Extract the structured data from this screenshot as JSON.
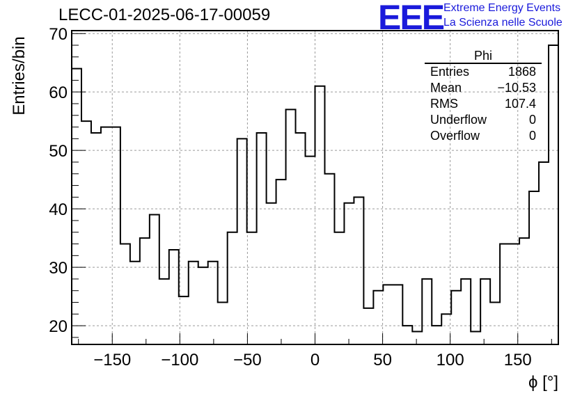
{
  "title": "LECC-01-2025-06-17-00059",
  "logo": {
    "mark": "EEE",
    "line1": "Extreme Energy Events",
    "line2": "La Scienza nelle Scuole"
  },
  "stats_box": {
    "name": "Phi",
    "rows": [
      {
        "label": "Entries",
        "value": "1868"
      },
      {
        "label": "Mean",
        "value": "−10.53"
      },
      {
        "label": "RMS",
        "value": "107.4"
      },
      {
        "label": "Underflow",
        "value": "0"
      },
      {
        "label": "Overflow",
        "value": "0"
      }
    ]
  },
  "chart_data": {
    "type": "histogram",
    "title": "LECC-01-2025-06-17-00059",
    "xlabel": "ϕ [°]",
    "ylabel": "Entries/bin",
    "xlim": [
      -180,
      180
    ],
    "ylim": [
      16.8,
      70.5
    ],
    "bin_width": 7.2,
    "xticks": [
      -150,
      -100,
      -50,
      0,
      50,
      100,
      150
    ],
    "xtick_labels": [
      "−150",
      "−100",
      "−50",
      "0",
      "50",
      "100",
      "150"
    ],
    "yticks": [
      20,
      30,
      40,
      50,
      60,
      70
    ],
    "ytick_labels": [
      "20",
      "30",
      "40",
      "50",
      "60",
      "70"
    ],
    "grid": true,
    "line_color": "#000000",
    "values": [
      64,
      55,
      53,
      54,
      54,
      34,
      31,
      35,
      39,
      28,
      33,
      25,
      31,
      30,
      31,
      24,
      36,
      52,
      36,
      53,
      41,
      45,
      57,
      53,
      49,
      61,
      46,
      36,
      41,
      42,
      23,
      26,
      27,
      27,
      20,
      19,
      28,
      20,
      22,
      26,
      28,
      19,
      28,
      24,
      34,
      34,
      35,
      43,
      48,
      68
    ]
  }
}
